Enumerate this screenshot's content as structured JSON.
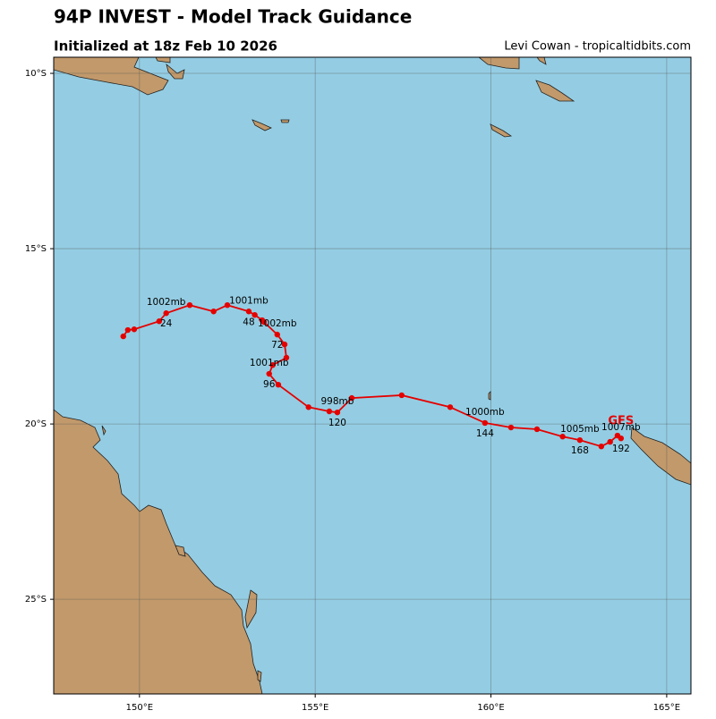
{
  "chart_data": {
    "type": "track",
    "title": "94P INVEST - Model Track Guidance",
    "subtitle": "Initialized at 18z Feb 10 2026",
    "credit": "Levi Cowan - tropicaltidbits.com",
    "xlim": [
      147.56,
      165.69
    ],
    "ylim": [
      -27.7,
      -9.54
    ],
    "xticks": [
      {
        "value": 150,
        "label": "150°E"
      },
      {
        "value": 155,
        "label": "155°E"
      },
      {
        "value": 160,
        "label": "160°E"
      },
      {
        "value": 165,
        "label": "165°E"
      }
    ],
    "yticks": [
      {
        "value": -10,
        "label": "10°S"
      },
      {
        "value": -15,
        "label": "15°S"
      },
      {
        "value": -20,
        "label": "20°S"
      },
      {
        "value": -25,
        "label": "25°S"
      }
    ],
    "grid": true,
    "series": [
      {
        "name": "GFS",
        "color": "#e50000",
        "x": [
          149.54,
          149.67,
          149.85,
          150.56,
          150.76,
          151.43,
          152.11,
          152.5,
          153.11,
          153.28,
          153.49,
          153.54,
          153.92,
          154.13,
          154.18,
          153.79,
          153.69,
          153.95,
          154.81,
          155.4,
          155.63,
          156.04,
          157.46,
          158.84,
          159.83,
          160.57,
          161.31,
          162.04,
          162.53,
          163.14,
          163.39,
          163.6,
          163.7
        ],
        "values": [
          -17.5,
          -17.32,
          -17.3,
          -17.07,
          -16.84,
          -16.61,
          -16.79,
          -16.61,
          -16.79,
          -16.89,
          -17.04,
          -17.09,
          -17.45,
          -17.73,
          -18.11,
          -18.32,
          -18.57,
          -18.88,
          -19.52,
          -19.64,
          -19.67,
          -19.26,
          -19.18,
          -19.52,
          -19.97,
          -20.1,
          -20.15,
          -20.36,
          -20.46,
          -20.64,
          -20.51,
          -20.33,
          -20.41
        ]
      }
    ],
    "annotations": [
      {
        "hour": 24,
        "pressure": "1002mb"
      },
      {
        "hour": 48,
        "pressure": "1001mb"
      },
      {
        "hour": 72,
        "pressure": "1002mb"
      },
      {
        "hour": 96,
        "pressure": "1001mb"
      },
      {
        "hour": 120,
        "pressure": "998mb"
      },
      {
        "hour": 144,
        "pressure": "1000mb"
      },
      {
        "hour": 168,
        "pressure": "1005mb"
      },
      {
        "hour": 192,
        "pressure": "1007mb"
      }
    ]
  }
}
